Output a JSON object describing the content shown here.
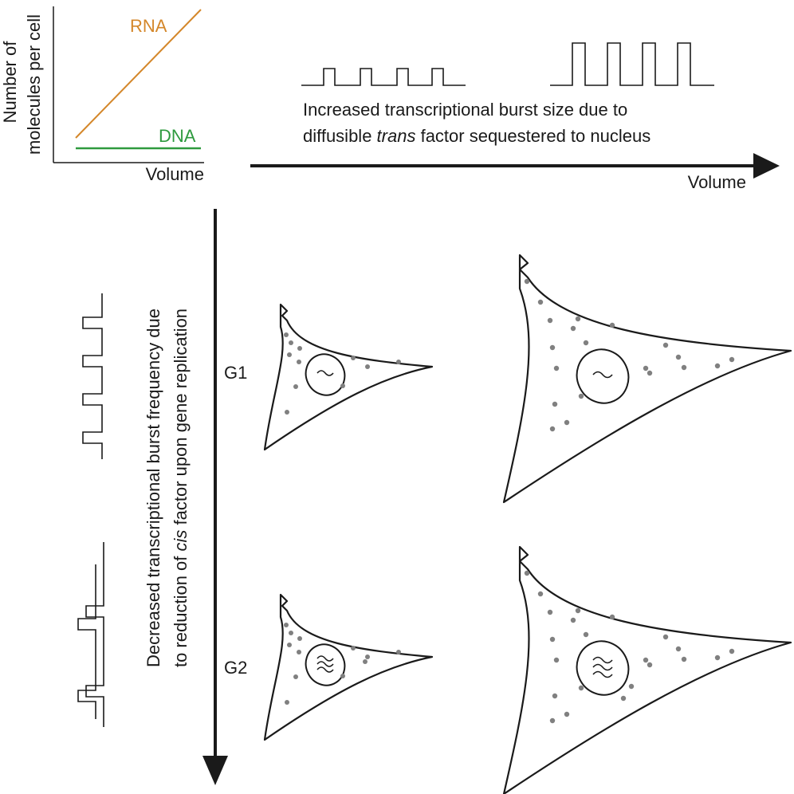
{
  "inset_graph": {
    "ylabel_line1": "Number of",
    "ylabel_line2": "molecules per cell",
    "xlabel": "Volume",
    "series": [
      {
        "name": "RNA",
        "color": "#D4872A",
        "trend": "increasing"
      },
      {
        "name": "DNA",
        "color": "#2E9A3E",
        "trend": "constant"
      }
    ]
  },
  "volume_axis": {
    "label": "Volume",
    "caption_line1": "Increased transcriptional burst size due to",
    "caption_line2_pre": "diffusible ",
    "caption_line2_italic": "trans",
    "caption_line2_post": " factor sequestered to nucleus",
    "burst_small_count": 4,
    "burst_large_count": 4
  },
  "cell_cycle_axis": {
    "caption_line1": "Decreased transcriptional burst frequency due",
    "caption_line2_pre": "to reduction of ",
    "caption_line2_italic": "cis",
    "caption_line2_post": " factor upon gene replication",
    "phases": [
      "G1",
      "G2"
    ]
  },
  "colors": {
    "line": "#1a1a1a",
    "dot": "#808080",
    "rna": "#D4872A",
    "dna": "#2E9A3E"
  }
}
